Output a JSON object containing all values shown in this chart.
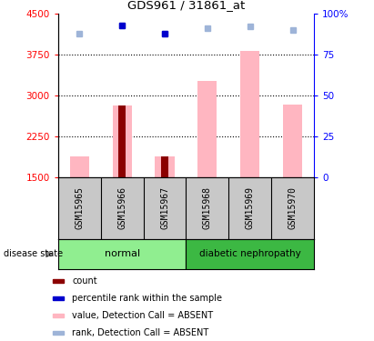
{
  "title": "GDS961 / 31861_at",
  "samples": [
    "GSM15965",
    "GSM15966",
    "GSM15967",
    "GSM15968",
    "GSM15969",
    "GSM15970"
  ],
  "ylim_left": [
    1500,
    4500
  ],
  "ylim_right": [
    0,
    100
  ],
  "yticks_left": [
    1500,
    2250,
    3000,
    3750,
    4500
  ],
  "yticks_right": [
    0,
    25,
    50,
    75,
    100
  ],
  "ytick_right_labels": [
    "0",
    "25",
    "50",
    "75",
    "100%"
  ],
  "count_values": [
    null,
    2820,
    1880,
    null,
    null,
    null
  ],
  "value_absent": [
    1880,
    2820,
    1880,
    3270,
    3810,
    2840
  ],
  "rank_absent_pct": [
    88,
    93,
    88,
    91,
    92,
    90
  ],
  "percentile_rank_pct": [
    null,
    93,
    88,
    null,
    null,
    null
  ],
  "bar_color_count": "#8B0000",
  "bar_color_value": "#FFB6C1",
  "dot_color_rank": "#0000CD",
  "dot_color_rank_absent": "#9EB4D8",
  "normal_color": "#90EE90",
  "diabetic_color": "#3CB843",
  "gridline_ticks": [
    2250,
    3000,
    3750
  ],
  "legend_entries": [
    {
      "label": "count",
      "color": "#8B0000"
    },
    {
      "label": "percentile rank within the sample",
      "color": "#0000CD"
    },
    {
      "label": "value, Detection Call = ABSENT",
      "color": "#FFB6C1"
    },
    {
      "label": "rank, Detection Call = ABSENT",
      "color": "#9EB4D8"
    }
  ]
}
